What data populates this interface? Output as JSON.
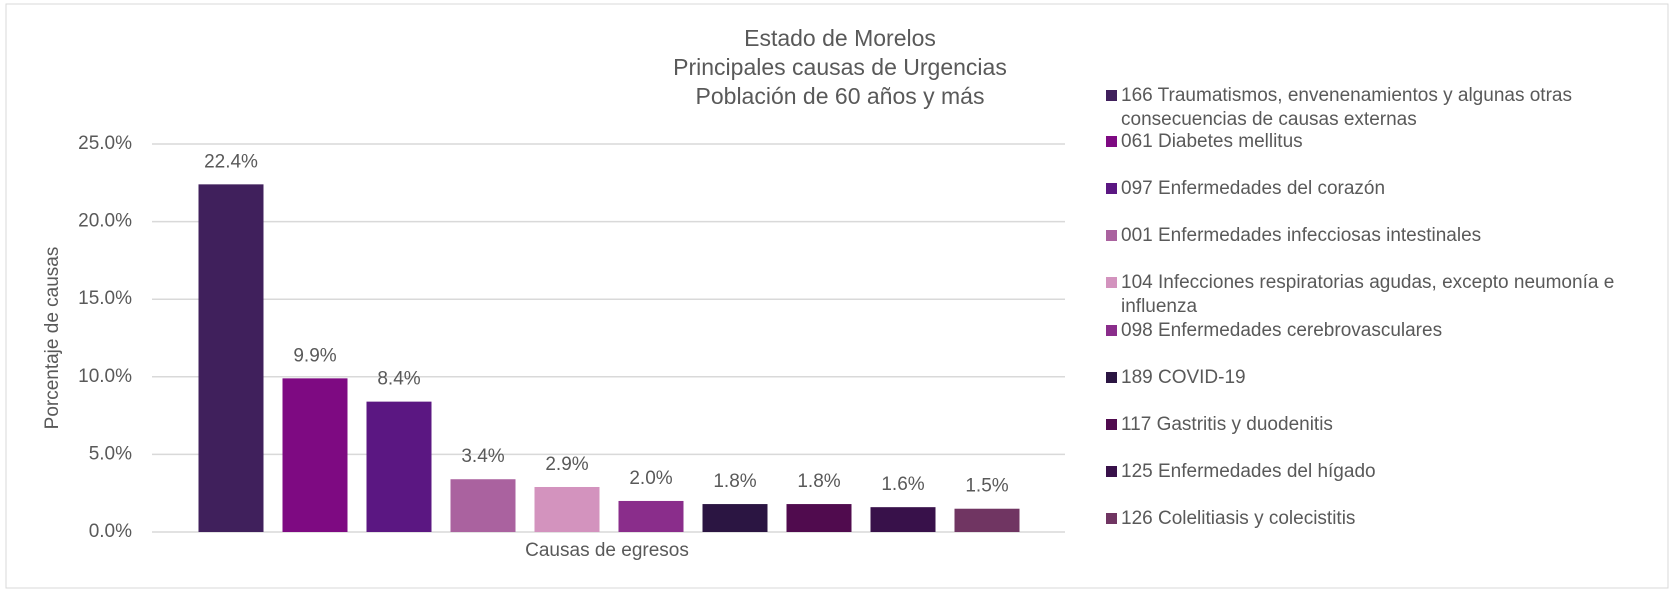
{
  "chart_data": {
    "type": "bar",
    "title": [
      "Estado de Morelos",
      "Principales causas de Urgencias",
      "Población de 60 años y más"
    ],
    "x_label": "Causas de egresos",
    "y_label": "Porcentaje de causas",
    "categories": [
      "166 Traumatismos, envenenamientos y algunas otras consecuencias de causas externas",
      "061 Diabetes mellitus",
      "097 Enfermedades del corazón",
      "001 Enfermedades infecciosas intestinales",
      "104 Infecciones respiratorias agudas, excepto neumonía e influenza",
      "098 Enfermedades cerebrovasculares",
      "189 COVID-19",
      "117 Gastritis y duodenitis",
      "125 Enfermedades del hígado",
      "126 Colelitiasis y colecistitis"
    ],
    "values": [
      22.4,
      9.9,
      8.4,
      3.4,
      2.9,
      2.0,
      1.8,
      1.8,
      1.6,
      1.5
    ],
    "value_labels": [
      "22.4%",
      "9.9%",
      "8.4%",
      "3.4%",
      "2.9%",
      "2.0%",
      "1.8%",
      "1.8%",
      "1.6%",
      "1.5%"
    ],
    "colors": [
      "#40205c",
      "#7e0a82",
      "#5b1782",
      "#aa629f",
      "#d393be",
      "#8a2d8b",
      "#2b1542",
      "#500b4e",
      "#38114a",
      "#703562"
    ],
    "ylim": [
      0,
      25
    ],
    "yticks": [
      {
        "value": 0,
        "label": "0.0%"
      },
      {
        "value": 5,
        "label": "5.0%"
      },
      {
        "value": 10,
        "label": "10.0%"
      },
      {
        "value": 15,
        "label": "15.0%"
      },
      {
        "value": 20,
        "label": "20.0%"
      },
      {
        "value": 25,
        "label": "25.0%"
      }
    ],
    "grid": true,
    "legend": "right"
  }
}
